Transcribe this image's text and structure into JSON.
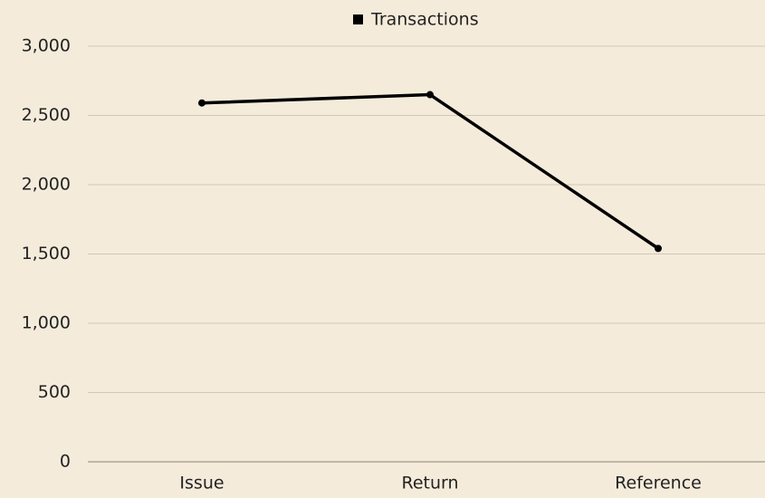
{
  "chart_data": {
    "type": "line",
    "categories": [
      "Issue",
      "Return",
      "Reference"
    ],
    "series": [
      {
        "name": "Transactions",
        "color": "#000000",
        "values": [
          2590,
          2650,
          1540
        ]
      }
    ],
    "ylim": [
      0,
      3000
    ],
    "yticks": [
      0,
      500,
      {
        "value": 1000,
        "label": "1,000"
      },
      {
        "value": 1500,
        "label": "1,500"
      },
      {
        "value": 2000,
        "label": "2,000"
      },
      {
        "value": 2500,
        "label": "2,500"
      },
      {
        "value": 3000,
        "label": "3,000"
      }
    ],
    "grid": true,
    "legend": "top"
  }
}
